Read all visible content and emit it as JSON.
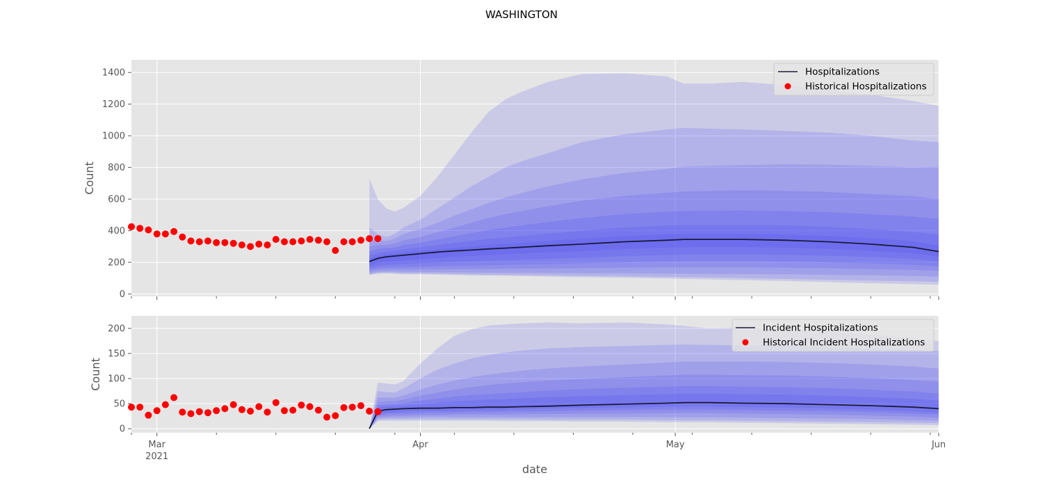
{
  "figure": {
    "title": "WASHINGTON",
    "xlabel": "date"
  },
  "colors": {
    "panel_bg": "#e5e5e5",
    "grid": "#ffffff",
    "observed": "#ff0000",
    "median": "#1a1a3a",
    "band": "#4040f0"
  },
  "x_ticks": {
    "major": [
      {
        "date": "2021-03-01",
        "label": "Mar",
        "sublabel": "2021"
      },
      {
        "date": "2021-04-01",
        "label": "Apr",
        "sublabel": ""
      },
      {
        "date": "2021-05-01",
        "label": "May",
        "sublabel": ""
      },
      {
        "date": "2021-06-01",
        "label": "Jun",
        "sublabel": ""
      }
    ],
    "minor": [
      "2021-03-08",
      "2021-03-15",
      "2021-03-22",
      "2021-03-29",
      "2021-04-05",
      "2021-04-12",
      "2021-04-19",
      "2021-04-26",
      "2021-05-03",
      "2021-05-10",
      "2021-05-17",
      "2021-05-24",
      "2021-05-31"
    ]
  },
  "chart_data": [
    {
      "type": "area",
      "ylabel": "Count",
      "xlim": [
        "2021-02-26",
        "2021-06-01"
      ],
      "ylim": [
        -15,
        1480
      ],
      "yticks": [
        0,
        200,
        400,
        600,
        800,
        1000,
        1200,
        1400
      ],
      "grid": true,
      "legend_position": "top-right",
      "legend": [
        "Hospitalizations",
        "Historical Hospitalizations"
      ],
      "observed": {
        "name": "Historical Hospitalizations",
        "start": "2021-02-26",
        "values": [
          425,
          415,
          405,
          380,
          380,
          395,
          360,
          335,
          330,
          335,
          325,
          325,
          320,
          310,
          300,
          315,
          310,
          345,
          330,
          330,
          335,
          345,
          340,
          330,
          275,
          330,
          330,
          340,
          350,
          350
        ]
      },
      "forecast": {
        "name": "Hospitalizations",
        "dates": [
          "2021-03-26",
          "2021-03-27",
          "2021-03-28",
          "2021-03-29",
          "2021-03-30",
          "2021-04-01",
          "2021-04-03",
          "2021-04-05",
          "2021-04-07",
          "2021-04-09",
          "2021-04-11",
          "2021-04-13",
          "2021-04-16",
          "2021-04-20",
          "2021-04-25",
          "2021-04-30",
          "2021-05-02",
          "2021-05-05",
          "2021-05-09",
          "2021-05-14",
          "2021-05-19",
          "2021-05-24",
          "2021-05-29",
          "2021-06-01"
        ],
        "median": [
          205,
          225,
          235,
          240,
          245,
          255,
          265,
          272,
          278,
          285,
          290,
          296,
          305,
          315,
          330,
          340,
          345,
          345,
          345,
          340,
          330,
          315,
          295,
          268
        ],
        "bands": [
          {
            "lower": [
              120,
              128,
              130,
              128,
              125,
              125,
              123,
              120,
              118,
              116,
              115,
              113,
              110,
              106,
              103,
              98,
              95,
              92,
              88,
              82,
              75,
              68,
              62,
              58
            ],
            "upper": [
              730,
              600,
              540,
              520,
              545,
              620,
              740,
              880,
              1020,
              1150,
              1230,
              1280,
              1340,
              1390,
              1395,
              1375,
              1330,
              1330,
              1340,
              1320,
              1290,
              1260,
              1220,
              1190
            ]
          },
          {
            "lower": [
              125,
              133,
              135,
              133,
              130,
              130,
              128,
              126,
              124,
              122,
              121,
              120,
              118,
              115,
              112,
              108,
              106,
              104,
              100,
              95,
              90,
              85,
              80,
              76
            ],
            "upper": [
              420,
              380,
              360,
              380,
              420,
              470,
              540,
              610,
              680,
              740,
              800,
              840,
              890,
              960,
              1010,
              1040,
              1050,
              1045,
              1040,
              1030,
              1020,
              1000,
              970,
              960
            ]
          },
          {
            "lower": [
              130,
              139,
              142,
              141,
              139,
              139,
              138,
              137,
              136,
              135,
              134,
              134,
              133,
              132,
              131,
              129,
              128,
              127,
              126,
              124,
              121,
              118,
              114,
              110
            ],
            "upper": [
              340,
              340,
              335,
              350,
              380,
              410,
              450,
              495,
              535,
              575,
              610,
              640,
              680,
              725,
              765,
              790,
              805,
              810,
              815,
              820,
              818,
              810,
              800,
              805
            ]
          },
          {
            "lower": [
              140,
              150,
              154,
              154,
              153,
              155,
              156,
              157,
              157,
              158,
              159,
              160,
              161,
              163,
              166,
              168,
              168,
              168,
              168,
              166,
              163,
              158,
              152,
              146
            ],
            "upper": [
              300,
              310,
              310,
              320,
              340,
              360,
              390,
              420,
              450,
              480,
              505,
              525,
              555,
              590,
              620,
              640,
              648,
              652,
              655,
              652,
              645,
              632,
              618,
              600
            ]
          },
          {
            "lower": [
              152,
              163,
              168,
              169,
              169,
              172,
              175,
              178,
              180,
              182,
              184,
              186,
              189,
              194,
              200,
              205,
              206,
              207,
              207,
              205,
              200,
              193,
              184,
              173
            ],
            "upper": [
              270,
              285,
              290,
              295,
              310,
              325,
              345,
              365,
              385,
              405,
              420,
              435,
              455,
              480,
              505,
              520,
              525,
              527,
              528,
              525,
              517,
              505,
              490,
              475
            ]
          },
          {
            "lower": [
              165,
              178,
              184,
              186,
              188,
              193,
              198,
              203,
              206,
              210,
              213,
              217,
              222,
              229,
              239,
              246,
              249,
              250,
              250,
              248,
              242,
              234,
              221,
              206
            ],
            "upper": [
              245,
              260,
              268,
              274,
              282,
              295,
              310,
              323,
              335,
              348,
              358,
              368,
              382,
              400,
              420,
              432,
              436,
              437,
              437,
              434,
              425,
              410,
              393,
              376
            ]
          },
          {
            "lower": [
              180,
              196,
              205,
              209,
              212,
              220,
              228,
              235,
              240,
              246,
              250,
              256,
              263,
              271,
              284,
              293,
              296,
              297,
              297,
              293,
              285,
              273,
              256,
              236
            ],
            "upper": [
              225,
              240,
              250,
              255,
              262,
              272,
              283,
              292,
              300,
              310,
              317,
              324,
              335,
              350,
              366,
              377,
              380,
              380,
              380,
              376,
              367,
              353,
              334,
              305
            ]
          }
        ]
      }
    },
    {
      "type": "area",
      "ylabel": "Count",
      "xlim": [
        "2021-02-26",
        "2021-06-01"
      ],
      "ylim": [
        -8,
        225
      ],
      "yticks": [
        0,
        50,
        100,
        150,
        200
      ],
      "grid": true,
      "legend_position": "top-right",
      "legend": [
        "Incident Hospitalizations",
        "Historical Incident Hospitalizations"
      ],
      "observed": {
        "name": "Historical Incident Hospitalizations",
        "start": "2021-02-26",
        "values": [
          43,
          43,
          27,
          36,
          48,
          62,
          33,
          30,
          34,
          32,
          36,
          40,
          48,
          38,
          35,
          44,
          33,
          52,
          36,
          37,
          47,
          44,
          37,
          23,
          26,
          42,
          43,
          46,
          35,
          34
        ]
      },
      "forecast": {
        "name": "Incident Hospitalizations",
        "dates": [
          "2021-03-26",
          "2021-03-27",
          "2021-03-28",
          "2021-03-29",
          "2021-03-30",
          "2021-04-01",
          "2021-04-03",
          "2021-04-05",
          "2021-04-07",
          "2021-04-09",
          "2021-04-11",
          "2021-04-13",
          "2021-04-16",
          "2021-04-20",
          "2021-04-25",
          "2021-04-30",
          "2021-05-02",
          "2021-05-05",
          "2021-05-09",
          "2021-05-14",
          "2021-05-19",
          "2021-05-24",
          "2021-05-29",
          "2021-06-01"
        ],
        "median": [
          0,
          35,
          38,
          39,
          40,
          41,
          41,
          42,
          42,
          43,
          43,
          44,
          45,
          47,
          49,
          51,
          52,
          52,
          51,
          50,
          48,
          46,
          43,
          40
        ],
        "bands": [
          {
            "lower": [
              0,
              15,
              16,
              16,
              16,
              16,
              16,
              16,
              16,
              16,
              15,
              15,
              15,
              14,
              14,
              13,
              13,
              13,
              12,
              11,
              10,
              9,
              8,
              7
            ],
            "upper": [
              0,
              92,
              90,
              88,
              95,
              130,
              160,
              185,
              198,
              206,
              208,
              210,
              212,
              210,
              212,
              208,
              205,
              200,
              202,
              196,
              193,
              188,
              180,
              175
            ]
          },
          {
            "lower": [
              0,
              18,
              19,
              19,
              19,
              19,
              19,
              19,
              19,
              19,
              19,
              19,
              18,
              18,
              18,
              17,
              17,
              17,
              16,
              15,
              14,
              13,
              12,
              11
            ],
            "upper": [
              0,
              75,
              73,
              72,
              80,
              100,
              118,
              130,
              140,
              147,
              152,
              156,
              160,
              163,
              165,
              167,
              168,
              167,
              166,
              165,
              163,
              160,
              157,
              155
            ]
          },
          {
            "lower": [
              0,
              21,
              22,
              22,
              22,
              23,
              23,
              23,
              23,
              23,
              23,
              23,
              23,
              23,
              23,
              23,
              23,
              23,
              22,
              21,
              20,
              19,
              17,
              16
            ],
            "upper": [
              0,
              62,
              62,
              62,
              66,
              78,
              88,
              96,
              103,
              108,
              112,
              116,
              120,
              124,
              128,
              132,
              134,
              134,
              134,
              133,
              131,
              128,
              124,
              120
            ]
          },
          {
            "lower": [
              0,
              24,
              25,
              26,
              26,
              27,
              27,
              28,
              28,
              28,
              28,
              29,
              29,
              30,
              30,
              31,
              31,
              31,
              30,
              29,
              28,
              26,
              24,
              22
            ],
            "upper": [
              0,
              53,
              54,
              55,
              58,
              66,
              72,
              78,
              83,
              87,
              90,
              93,
              96,
              99,
              103,
              106,
              108,
              108,
              107,
              106,
              104,
              101,
              97,
              94
            ]
          },
          {
            "lower": [
              0,
              27,
              29,
              30,
              30,
              31,
              32,
              32,
              33,
              33,
              34,
              34,
              35,
              36,
              37,
              38,
              38,
              38,
              37,
              36,
              35,
              33,
              30,
              28
            ],
            "upper": [
              0,
              47,
              48,
              49,
              51,
              56,
              60,
              64,
              67,
              69,
              71,
              73,
              76,
              79,
              82,
              84,
              85,
              85,
              84,
              83,
              81,
              78,
              74,
              70
            ]
          },
          {
            "lower": [
              0,
              30,
              32,
              33,
              34,
              35,
              35,
              36,
              37,
              37,
              38,
              39,
              40,
              41,
              42,
              44,
              44,
              44,
              43,
              42,
              40,
              38,
              35,
              32
            ],
            "upper": [
              0,
              42,
              44,
              45,
              46,
              49,
              52,
              54,
              56,
              58,
              59,
              61,
              63,
              65,
              67,
              69,
              70,
              70,
              69,
              68,
              66,
              63,
              60,
              56
            ]
          }
        ]
      }
    }
  ]
}
